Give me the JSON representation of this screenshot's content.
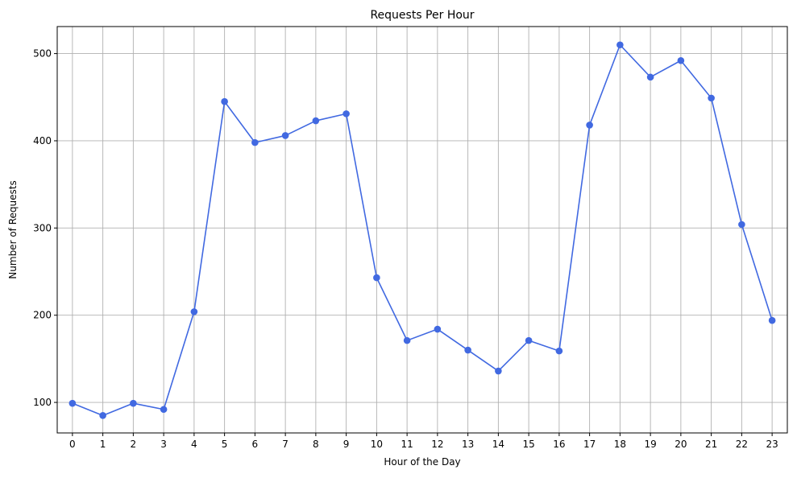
{
  "chart_data": {
    "type": "line",
    "title": "Requests Per Hour",
    "xlabel": "Hour of the Day",
    "ylabel": "Number of Requests",
    "x": [
      0,
      1,
      2,
      3,
      4,
      5,
      6,
      7,
      8,
      9,
      10,
      11,
      12,
      13,
      14,
      15,
      16,
      17,
      18,
      19,
      20,
      21,
      22,
      23
    ],
    "x_tick_labels": [
      "0",
      "1",
      "2",
      "3",
      "4",
      "5",
      "6",
      "7",
      "8",
      "9",
      "10",
      "11",
      "12",
      "13",
      "14",
      "15",
      "16",
      "17",
      "18",
      "19",
      "20",
      "21",
      "22",
      "23"
    ],
    "series": [
      {
        "values": [
          99,
          85,
          99,
          92,
          204,
          445,
          398,
          406,
          423,
          431,
          243,
          171,
          184,
          160,
          136,
          171,
          159,
          418,
          510,
          473,
          492,
          449,
          304,
          194
        ],
        "color": "#4169e1",
        "marker": "circle"
      }
    ],
    "xlim": [
      -0.5,
      23.5
    ],
    "ylim": [
      65,
      531
    ],
    "y_ticks": [
      100,
      200,
      300,
      400,
      500
    ],
    "y_tick_labels": [
      "100",
      "200",
      "300",
      "400",
      "500"
    ],
    "grid": true,
    "legend": "none"
  }
}
